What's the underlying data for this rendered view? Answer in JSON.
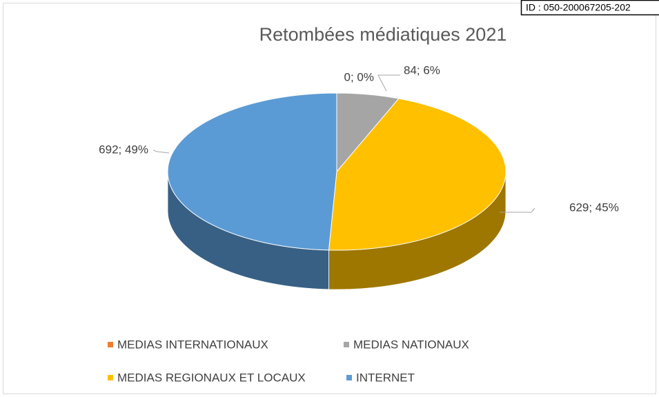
{
  "chart_data": {
    "type": "pie3d",
    "title": "Retombées médiatiques 2021",
    "stamp": "ID : 050-200067205-202",
    "categories": [
      "MEDIAS INTERNATIONAUX",
      "MEDIAS NATIONAUX",
      "MEDIAS REGIONAUX ET LOCAUX",
      "INTERNET"
    ],
    "values": [
      0,
      84,
      629,
      692
    ],
    "value_labels": [
      "0; 0%",
      "84; 6%",
      "629; 45%",
      "692; 49%"
    ],
    "colors": [
      "#ed7d31",
      "#a5a5a5",
      "#ffc000",
      "#5b9bd5"
    ],
    "legend": "bottom"
  }
}
